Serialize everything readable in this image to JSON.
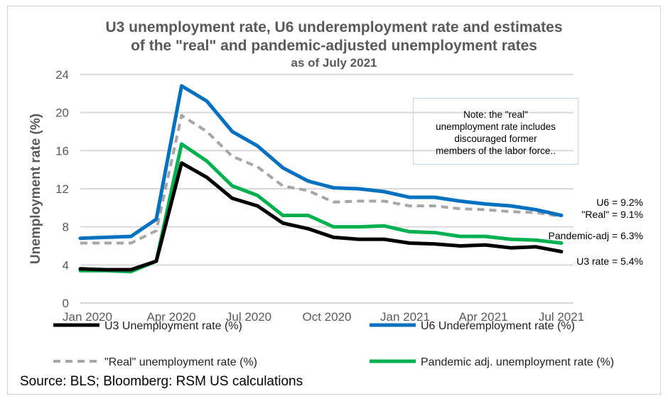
{
  "chart_data": {
    "type": "line",
    "title": [
      "U3 unemployment rate, U6 underemployment rate and estimates",
      "of the \"real\" and pandemic-adjusted unemployment rates"
    ],
    "subtitle": "as of July 2021",
    "ylabel": "Unemployment rate (%)",
    "xlabel": "",
    "ylim": [
      0,
      24
    ],
    "yticks": [
      "0",
      "4",
      "8",
      "12",
      "16",
      "20",
      "24"
    ],
    "xtick_labels": [
      "Jan 2020",
      "Apr 2020",
      "Jul 2020",
      "Oct 2020",
      "Jan 2021",
      "Apr 2021",
      "Jul 2021"
    ],
    "grid": "horizontal",
    "legend_placement": "bottom",
    "x": [
      "2019-12",
      "2020-01",
      "2020-02",
      "2020-03",
      "2020-04",
      "2020-05",
      "2020-06",
      "2020-07",
      "2020-08",
      "2020-09",
      "2020-10",
      "2020-11",
      "2020-12",
      "2021-01",
      "2021-02",
      "2021-03",
      "2021-04",
      "2021-05",
      "2021-06",
      "2021-07"
    ],
    "series": [
      {
        "name": "U3 Unemployment rate (%)",
        "color": "#000000",
        "style": "solid",
        "values": [
          3.6,
          3.5,
          3.5,
          4.4,
          14.7,
          13.2,
          11.0,
          10.2,
          8.4,
          7.8,
          6.9,
          6.7,
          6.7,
          6.3,
          6.2,
          6.0,
          6.1,
          5.8,
          5.9,
          5.4
        ]
      },
      {
        "name": "U6 Underemployment rate (%)",
        "color": "#0070c0",
        "style": "solid",
        "values": [
          6.8,
          6.9,
          7.0,
          8.8,
          22.8,
          21.2,
          18.0,
          16.5,
          14.2,
          12.8,
          12.1,
          12.0,
          11.7,
          11.1,
          11.1,
          10.7,
          10.4,
          10.2,
          9.8,
          9.2
        ]
      },
      {
        "name": "\"Real\" unemployment rate (%)",
        "color": "#a6a6a6",
        "style": "dashed",
        "values": [
          6.3,
          6.3,
          6.3,
          7.6,
          19.7,
          18.0,
          15.4,
          14.3,
          12.3,
          11.8,
          10.6,
          10.7,
          10.7,
          10.2,
          10.2,
          9.9,
          9.8,
          9.6,
          9.5,
          9.1
        ]
      },
      {
        "name": "Pandemic adj. unemployment rate (%)",
        "color": "#00b050",
        "style": "solid",
        "values": [
          3.4,
          3.4,
          3.3,
          4.4,
          16.7,
          14.9,
          12.3,
          11.3,
          9.2,
          9.2,
          8.0,
          8.0,
          8.1,
          7.5,
          7.4,
          7.0,
          7.0,
          6.7,
          6.6,
          6.3
        ]
      }
    ],
    "end_labels": [
      "U6 = 9.2%",
      "\"Real\" = 9.1%",
      "Pandemic-adj = 6.3%",
      "U3 rate = 5.4%"
    ],
    "annotation": [
      "Note: the \"real\"",
      "unemployment rate includes",
      "discouraged former",
      "members of the labor force.."
    ]
  },
  "source": "Source: BLS; Bloomberg: RSM US calculations"
}
